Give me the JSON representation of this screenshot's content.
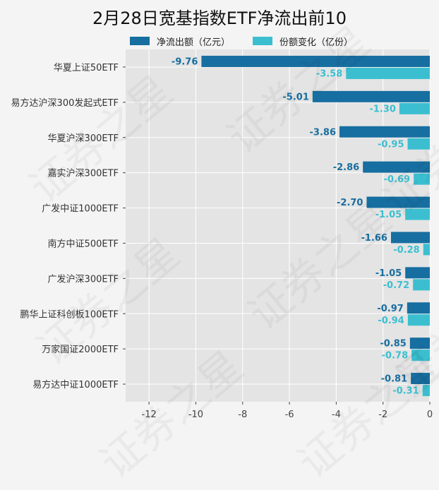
{
  "chart_data": {
    "type": "bar",
    "orientation": "horizontal",
    "title": "2月28日宽基指数ETF净流出前10",
    "categories": [
      "华夏上证50ETF",
      "易方达沪深300发起式ETF",
      "华夏沪深300ETF",
      "嘉实沪深300ETF",
      "广发中证1000ETF",
      "南方中证500ETF",
      "广发沪深300ETF",
      "鹏华上证科创板100ETF",
      "万家国证2000ETF",
      "易方达中证1000ETF"
    ],
    "series": [
      {
        "name": "净流出额（亿元）",
        "color": "#176ea0",
        "values": [
          -9.76,
          -5.01,
          -3.86,
          -2.86,
          -2.7,
          -1.66,
          -1.05,
          -0.97,
          -0.85,
          -0.81
        ],
        "labels": [
          "-9.76",
          "-5.01",
          "-3.86",
          "-2.86",
          "-2.70",
          "-1.66",
          "-1.05",
          "-0.97",
          "-0.85",
          "-0.81"
        ]
      },
      {
        "name": "份额变化（亿份）",
        "color": "#3bbfd0",
        "values": [
          -3.58,
          -1.3,
          -0.95,
          -0.69,
          -1.05,
          -0.28,
          -0.72,
          -0.94,
          -0.78,
          -0.31
        ],
        "labels": [
          "-3.58",
          "-1.30",
          "-0.95",
          "-0.69",
          "-1.05",
          "-0.28",
          "-0.72",
          "-0.94",
          "-0.78",
          "-0.31"
        ]
      }
    ],
    "xlim": [
      -13,
      0
    ],
    "xticks": [
      -12,
      -10,
      -8,
      -6,
      -4,
      -2,
      0
    ],
    "xtick_labels": [
      "-12",
      "-10",
      "-8",
      "-6",
      "-4",
      "-2",
      "0"
    ],
    "grid": true,
    "legend_position": "top"
  },
  "watermark": "证券之星"
}
